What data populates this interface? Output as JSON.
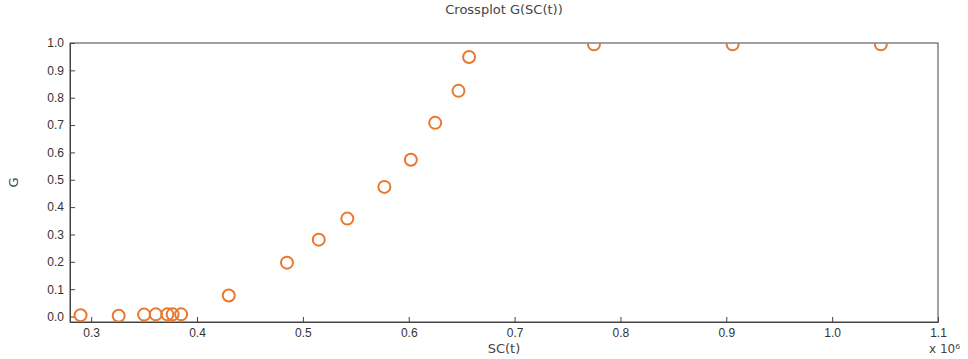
{
  "chart_data": {
    "type": "scatter",
    "title": "Crossplot G(SC(t))",
    "x_label": "SC(t)",
    "y_label": "G",
    "annotations": [
      "x 10⁶"
    ],
    "x": [
      0.29,
      0.326,
      0.35,
      0.361,
      0.372,
      0.377,
      0.385,
      0.43,
      0.485,
      0.515,
      0.542,
      0.577,
      0.602,
      0.625,
      0.647,
      0.657,
      0.775,
      0.906,
      1.046
    ],
    "values": [
      0.005,
      0.003,
      0.007,
      0.008,
      0.008,
      0.008,
      0.008,
      0.077,
      0.197,
      0.281,
      0.358,
      0.474,
      0.573,
      0.708,
      0.825,
      0.949,
      0.995,
      0.995,
      0.995
    ],
    "color": "#e8782e",
    "marker": "circle",
    "xlim": [
      0.28,
      1.1
    ],
    "xticks": [
      0.3,
      0.4,
      0.5,
      0.6,
      0.7,
      0.8,
      0.9,
      {
        "value": 1,
        "label": "1.0"
      },
      1.1
    ],
    "ylim": [
      -0.02,
      1.0
    ],
    "yticks": [
      {
        "value": 0,
        "label": "0.0"
      },
      0.1,
      0.2,
      0.3,
      0.4,
      0.5,
      0.6,
      0.7,
      0.8,
      0.9,
      {
        "value": 1,
        "label": "1.0"
      }
    ],
    "grid": false
  }
}
